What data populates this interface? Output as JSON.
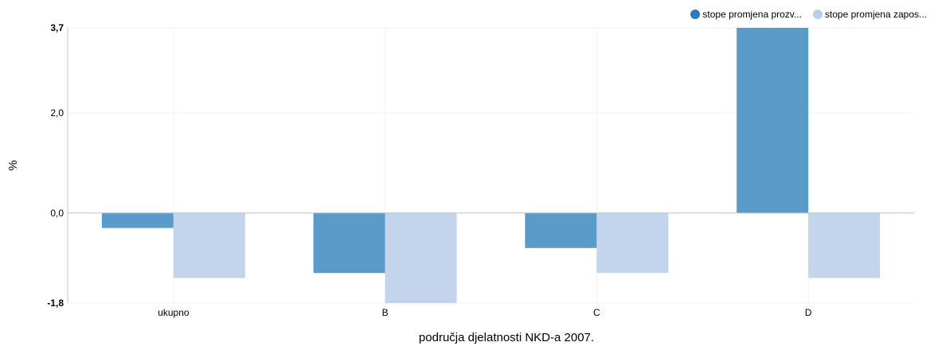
{
  "legend": {
    "items": [
      {
        "label": "stope promjena prozv...",
        "color": "#2b7bba"
      },
      {
        "label": "stope promjena zapos...",
        "color": "#b8cde8"
      }
    ]
  },
  "chart_data": {
    "type": "bar",
    "categories": [
      "ukupno",
      "B",
      "C",
      "D"
    ],
    "series": [
      {
        "values": [
          -0.3,
          -1.2,
          -0.7,
          3.7
        ],
        "color": "#5a9bc9"
      },
      {
        "values": [
          -1.3,
          -1.8,
          -1.2,
          -1.3
        ],
        "color": "#c3d5ec"
      }
    ],
    "ylabel": "%",
    "xlabel": "područja djelatnosti NKD-a 2007.",
    "ylim": [
      -1.8,
      3.7
    ],
    "yticks": [
      {
        "value": -1.8,
        "label": "-1,8",
        "bold": true
      },
      {
        "value": 0,
        "label": "0,0",
        "bold": false
      },
      {
        "value": 2.0,
        "label": "2,0",
        "bold": false
      },
      {
        "value": 3.7,
        "label": "3,7",
        "bold": true
      }
    ],
    "grid": true,
    "legend_position": "top-right"
  }
}
